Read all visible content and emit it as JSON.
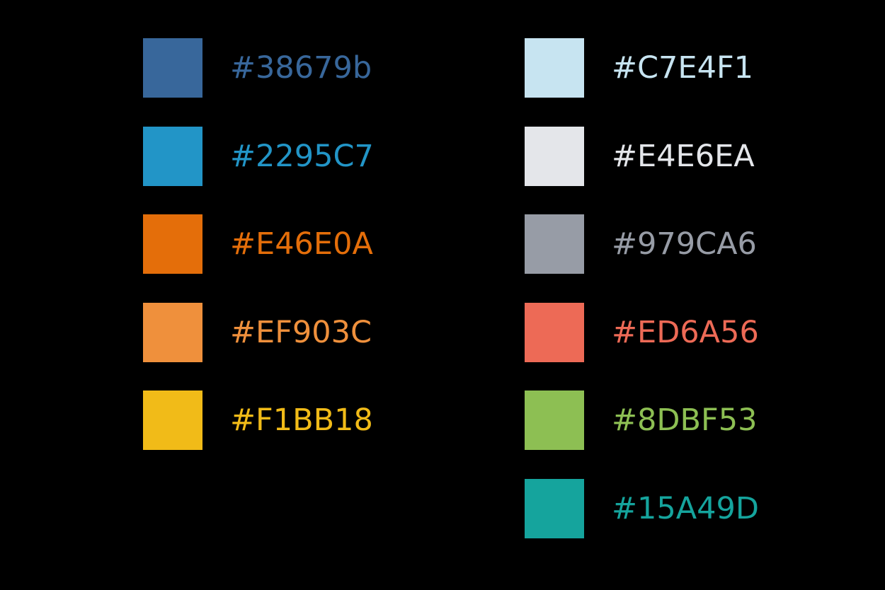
{
  "palette": {
    "left_column": [
      {
        "label": "#38679b",
        "color": "#38679B"
      },
      {
        "label": "#2295C7",
        "color": "#2295C7"
      },
      {
        "label": "#E46E0A",
        "color": "#E46E0A"
      },
      {
        "label": "#EF903C",
        "color": "#EF903C"
      },
      {
        "label": "#F1BB18",
        "color": "#F1BB18"
      }
    ],
    "right_column": [
      {
        "label": "#C7E4F1",
        "color": "#C7E4F1"
      },
      {
        "label": "#E4E6EA",
        "color": "#E4E6EA"
      },
      {
        "label": "#979CA6",
        "color": "#979CA6"
      },
      {
        "label": "#ED6A56",
        "color": "#ED6A56"
      },
      {
        "label": "#8DBF53",
        "color": "#8DBF53"
      },
      {
        "label": "#15A49D",
        "color": "#15A49D"
      }
    ]
  }
}
